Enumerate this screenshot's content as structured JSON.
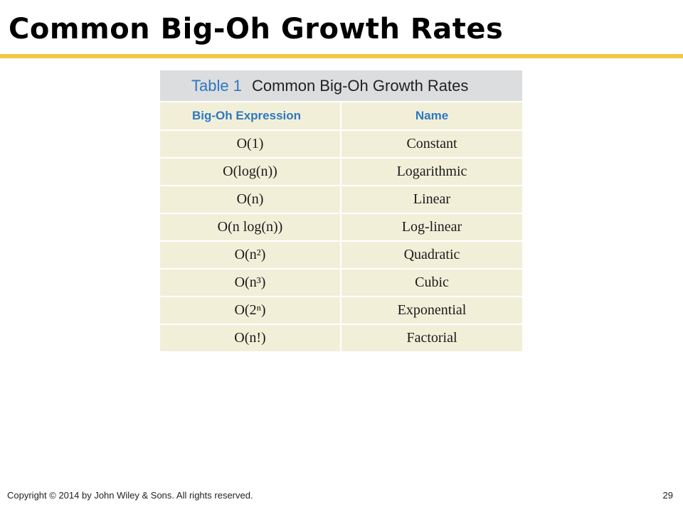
{
  "slide": {
    "title": "Common Big-Oh Growth Rates",
    "accent_color": "#f2c744"
  },
  "table": {
    "caption_number": "Table 1",
    "caption_text": "Common Big-Oh Growth Rates",
    "header_color": "#2d78c0",
    "cell_background": "#f2efd9",
    "caption_background": "#dcddde",
    "columns": [
      "Big-Oh Expression",
      "Name"
    ],
    "rows": [
      {
        "expression": "O(1)",
        "name": "Constant"
      },
      {
        "expression": "O(log(n))",
        "name": "Logarithmic"
      },
      {
        "expression": "O(n)",
        "name": "Linear"
      },
      {
        "expression": "O(n log(n))",
        "name": "Log-linear"
      },
      {
        "expression": "O(n²)",
        "name": "Quadratic"
      },
      {
        "expression": "O(n³)",
        "name": "Cubic"
      },
      {
        "expression": "O(2ⁿ)",
        "name": "Exponential"
      },
      {
        "expression": "O(n!)",
        "name": "Factorial"
      }
    ]
  },
  "footer": {
    "copyright": "Copyright © 2014 by John Wiley & Sons.  All rights reserved.",
    "page_number": "29"
  }
}
